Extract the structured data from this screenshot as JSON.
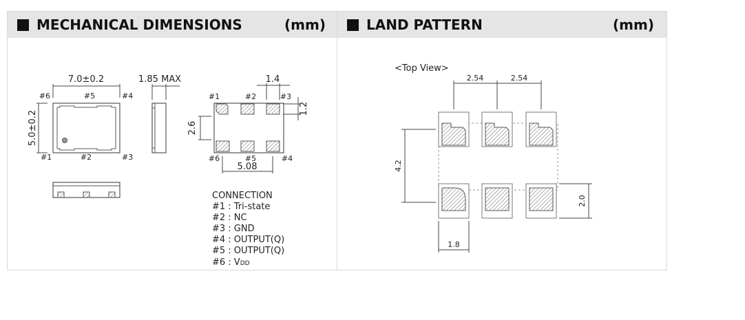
{
  "mechanical": {
    "title": "MECHANICAL DIMENSIONS",
    "unit": "(mm)",
    "dims": {
      "width": "7.0±0.2",
      "height": "5.0±0.2",
      "thickness": "1.85 MAX",
      "pad_pitch_h": "1.4",
      "pad_height": "1.2",
      "pad_span_v": "2.6",
      "pad_span_h": "5.08"
    },
    "pins_top_view": {
      "p6": "#6",
      "p5": "#5",
      "p4": "#4",
      "p1": "#1",
      "p2": "#2",
      "p3": "#3"
    },
    "pins_bottom_view": {
      "p1": "#1",
      "p2": "#2",
      "p3": "#3",
      "p6": "#6",
      "p5": "#5",
      "p4": "#4"
    },
    "connection": {
      "title": "CONNECTION",
      "lines": [
        "#1 : Tri-state",
        "#2 : NC",
        "#3 : GND",
        "#4 : OUTPUT(Q)",
        "#5 : OUTPUT(Q)"
      ],
      "vdd_prefix": "#6 : V",
      "vdd_sub": "DD"
    }
  },
  "land": {
    "title": "LAND PATTERN",
    "unit": "(mm)",
    "view": "<Top View>",
    "dims": {
      "pitch_left": "2.54",
      "pitch_right": "2.54",
      "row_span": "4.2",
      "pad_height": "2.0",
      "pad_width": "1.8"
    }
  }
}
